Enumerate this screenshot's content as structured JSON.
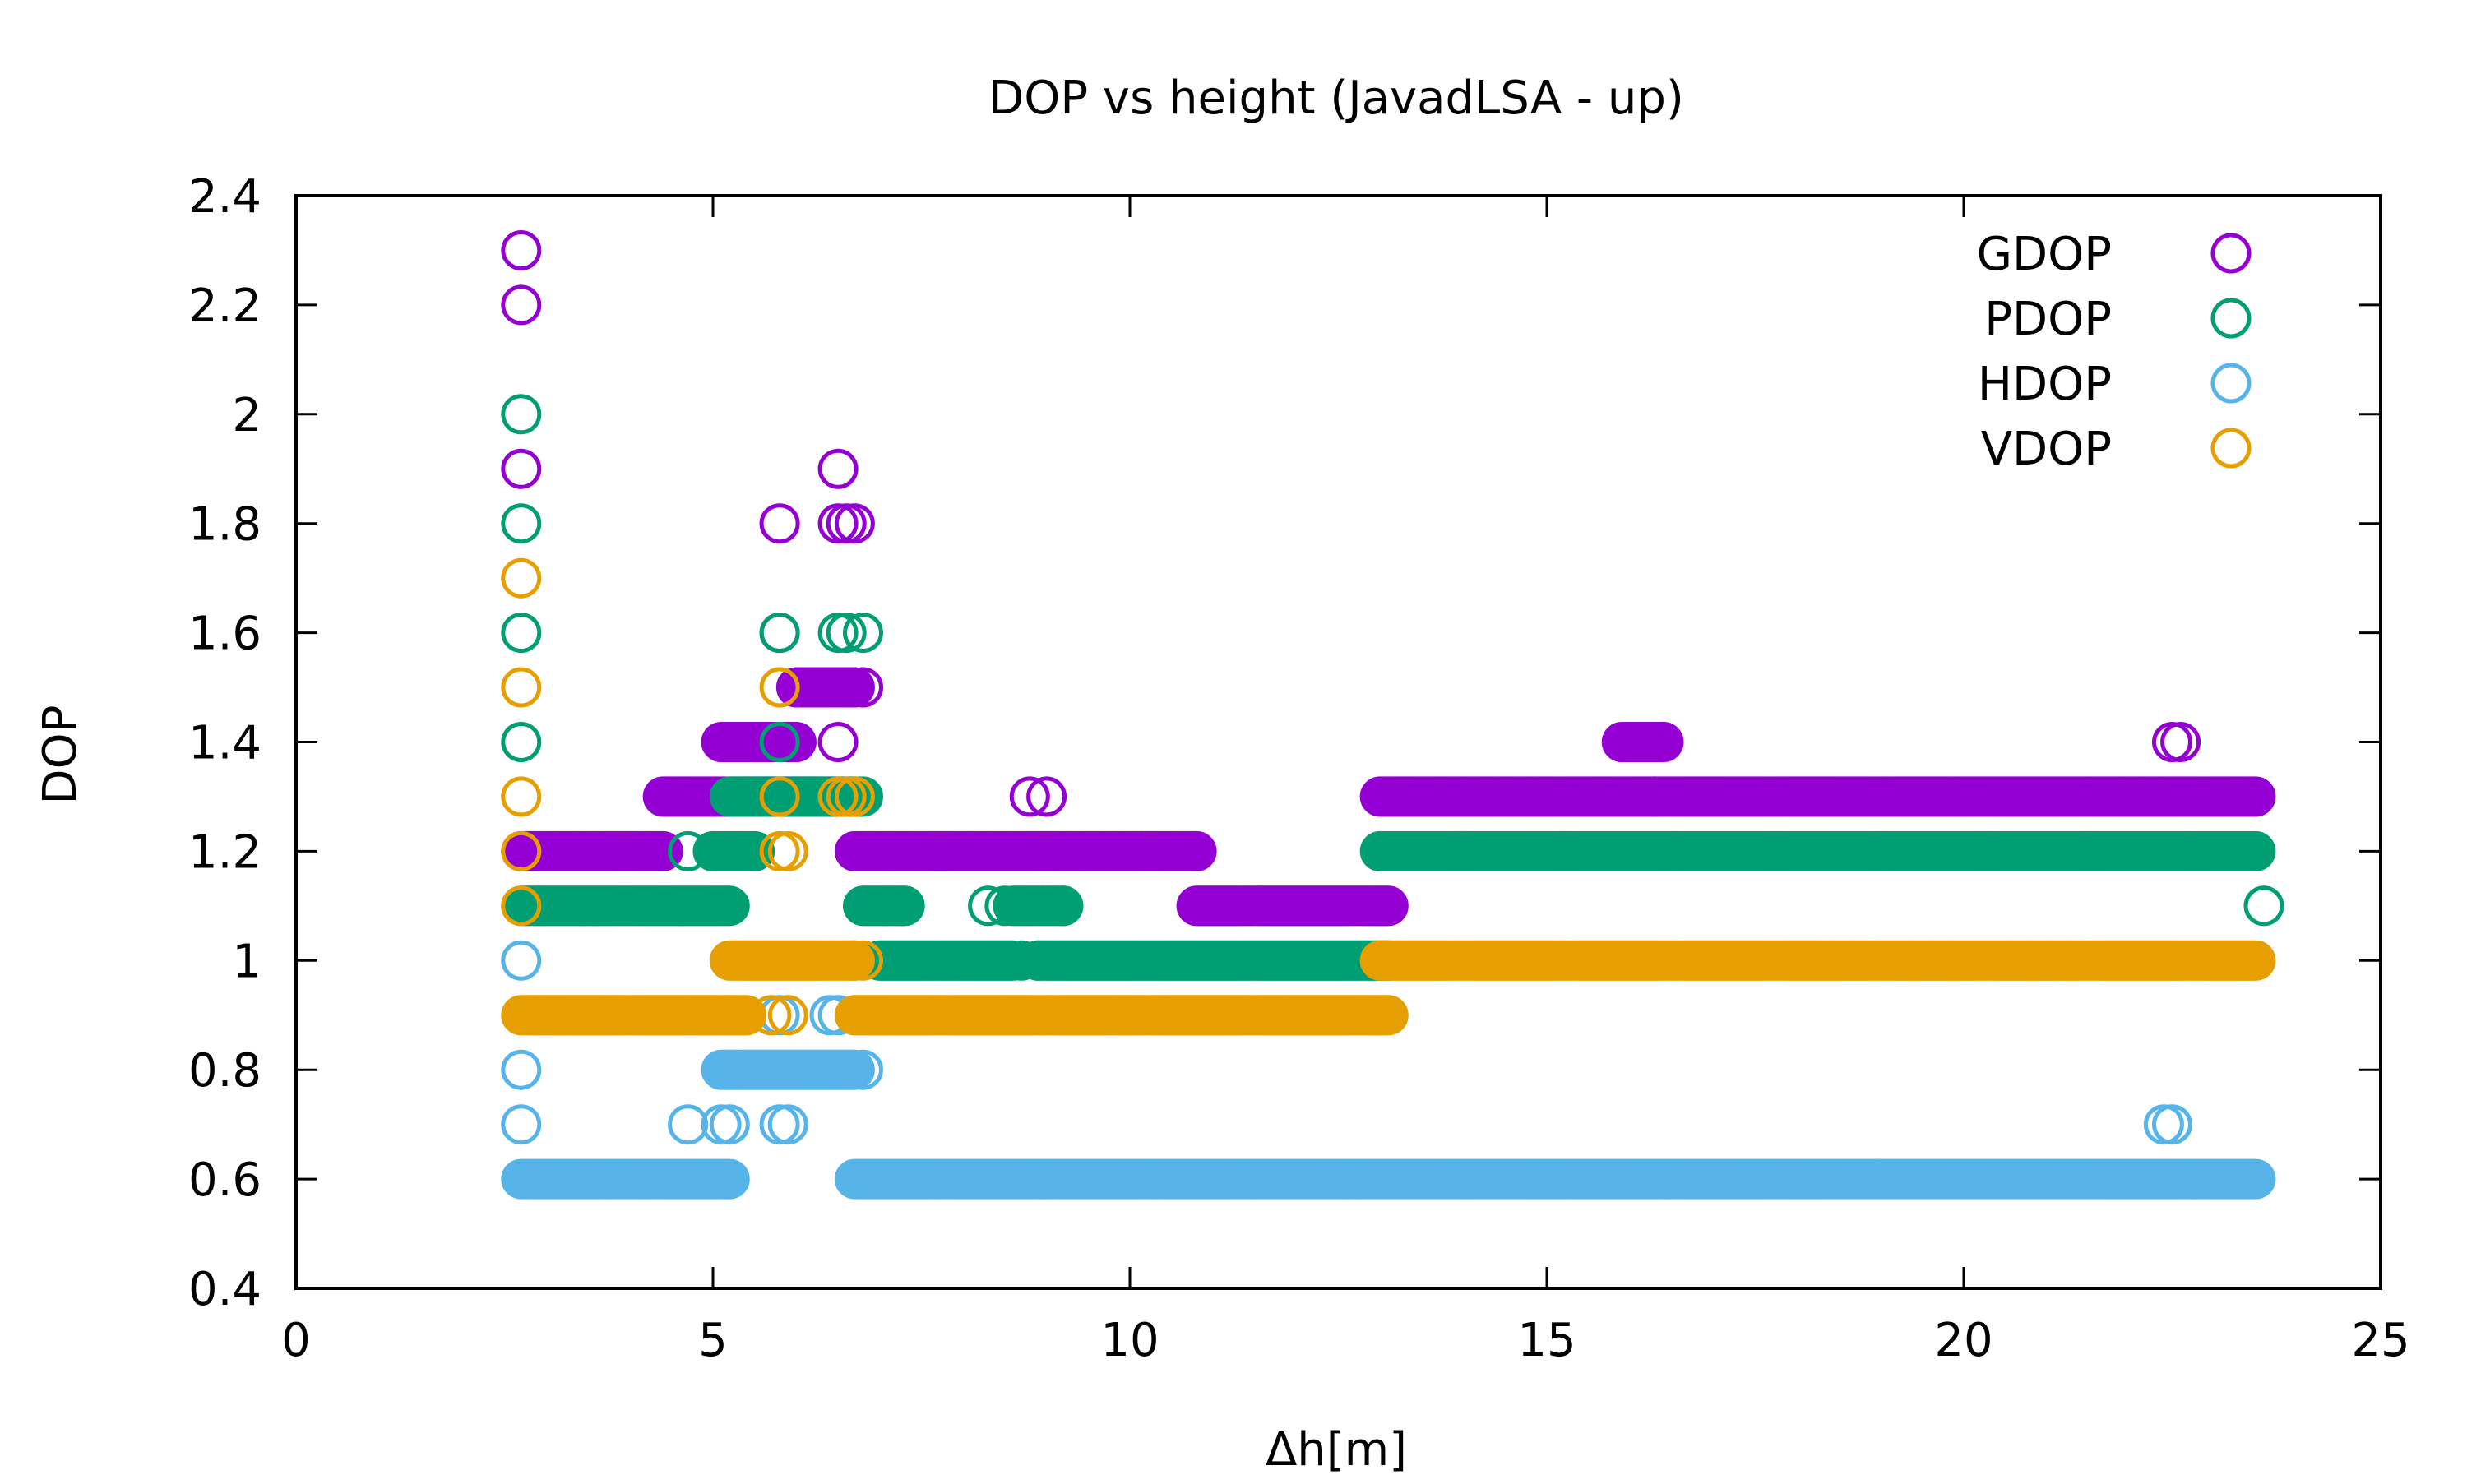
{
  "chart_data": {
    "type": "scatter",
    "title": "DOP vs height (JavadLSA - up)",
    "xlabel": "Δh[m]",
    "ylabel": "DOP",
    "xlim": [
      0,
      25
    ],
    "ylim": [
      0.4,
      2.4
    ],
    "xticks": [
      0,
      5,
      10,
      15,
      20,
      25
    ],
    "yticks": [
      0.4,
      0.6,
      0.8,
      1,
      1.2,
      1.4,
      1.6,
      1.8,
      2,
      2.2,
      2.4
    ],
    "grid": false,
    "legend_position": "top-right",
    "marker": "open-circle",
    "series": [
      {
        "name": "GDOP",
        "color": "#9400d3",
        "runs": [
          [
            2.7,
            4.4,
            1.2
          ],
          [
            4.4,
            6.7,
            1.3
          ],
          [
            5.1,
            6.0,
            1.4
          ],
          [
            6.0,
            6.7,
            1.5
          ],
          [
            6.7,
            10.8,
            1.2
          ],
          [
            10.8,
            13.1,
            1.1
          ],
          [
            13.0,
            16.3,
            1.3
          ],
          [
            16.3,
            23.5,
            1.3
          ],
          [
            15.9,
            16.4,
            1.4
          ]
        ],
        "points": [
          [
            2.7,
            2.3
          ],
          [
            2.7,
            2.2
          ],
          [
            2.7,
            1.9
          ],
          [
            6.5,
            1.9
          ],
          [
            5.8,
            1.8
          ],
          [
            6.5,
            1.8
          ],
          [
            6.6,
            1.8
          ],
          [
            6.7,
            1.8
          ],
          [
            5.8,
            1.6
          ],
          [
            6.8,
            1.5
          ],
          [
            6.5,
            1.4
          ],
          [
            5.9,
            1.4
          ],
          [
            8.8,
            1.3
          ],
          [
            9.0,
            1.3
          ],
          [
            22.5,
            1.4
          ],
          [
            22.6,
            1.4
          ]
        ]
      },
      {
        "name": "PDOP",
        "color": "#009e73",
        "runs": [
          [
            2.7,
            5.2,
            1.1
          ],
          [
            5.2,
            6.8,
            1.3
          ],
          [
            5.0,
            5.5,
            1.2
          ],
          [
            7.0,
            8.6,
            1.0
          ],
          [
            8.9,
            13.1,
            1.0
          ],
          [
            13.0,
            23.5,
            1.2
          ],
          [
            8.6,
            9.2,
            1.1
          ],
          [
            6.8,
            7.3,
            1.1
          ]
        ],
        "points": [
          [
            2.7,
            2.0
          ],
          [
            2.7,
            1.8
          ],
          [
            2.7,
            1.6
          ],
          [
            2.7,
            1.4
          ],
          [
            4.7,
            1.2
          ],
          [
            5.8,
            1.6
          ],
          [
            6.5,
            1.6
          ],
          [
            6.6,
            1.6
          ],
          [
            6.8,
            1.6
          ],
          [
            5.8,
            1.4
          ],
          [
            8.3,
            1.1
          ],
          [
            8.5,
            1.1
          ],
          [
            9.2,
            1.1
          ],
          [
            8.7,
            1.0
          ],
          [
            8.9,
            1.0
          ],
          [
            23.6,
            1.1
          ]
        ]
      },
      {
        "name": "HDOP",
        "color": "#56b4e9",
        "runs": [
          [
            2.7,
            5.2,
            0.6
          ],
          [
            6.7,
            23.5,
            0.6
          ],
          [
            5.1,
            6.7,
            0.8
          ]
        ],
        "points": [
          [
            2.7,
            1.0
          ],
          [
            2.7,
            0.8
          ],
          [
            2.7,
            0.7
          ],
          [
            4.7,
            0.7
          ],
          [
            5.1,
            0.7
          ],
          [
            5.2,
            0.7
          ],
          [
            5.8,
            0.7
          ],
          [
            5.9,
            0.7
          ],
          [
            5.8,
            0.9
          ],
          [
            6.4,
            0.9
          ],
          [
            6.5,
            0.9
          ],
          [
            6.8,
            0.8
          ],
          [
            22.4,
            0.7
          ],
          [
            22.5,
            0.7
          ]
        ]
      },
      {
        "name": "VDOP",
        "color": "#e69f00",
        "runs": [
          [
            2.7,
            5.4,
            0.9
          ],
          [
            6.7,
            13.1,
            0.9
          ],
          [
            5.2,
            6.7,
            1.0
          ],
          [
            13.0,
            23.5,
            1.0
          ]
        ],
        "points": [
          [
            2.7,
            1.7
          ],
          [
            2.7,
            1.5
          ],
          [
            2.7,
            1.3
          ],
          [
            2.7,
            1.2
          ],
          [
            2.7,
            1.1
          ],
          [
            5.8,
            1.5
          ],
          [
            5.8,
            1.3
          ],
          [
            5.8,
            1.2
          ],
          [
            5.9,
            1.2
          ],
          [
            6.5,
            1.3
          ],
          [
            6.6,
            1.3
          ],
          [
            6.7,
            1.3
          ],
          [
            5.7,
            0.9
          ],
          [
            5.9,
            0.9
          ],
          [
            6.7,
            1.0
          ],
          [
            6.8,
            1.0
          ]
        ]
      }
    ]
  }
}
